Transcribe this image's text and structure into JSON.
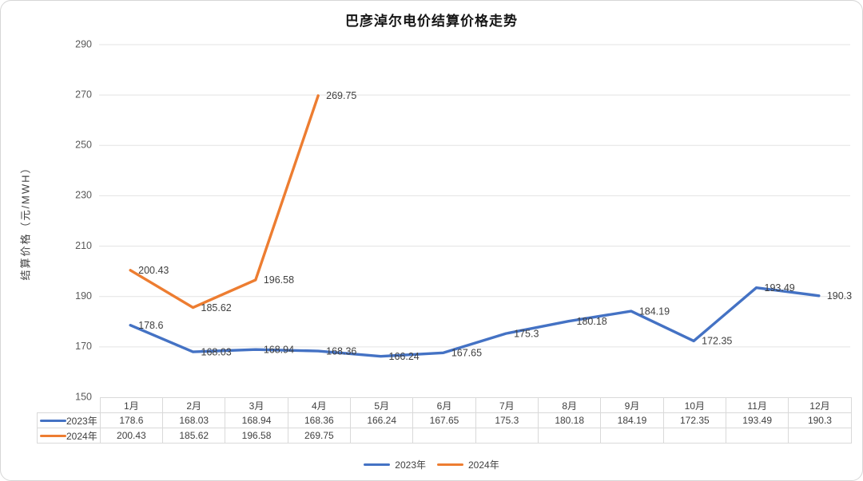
{
  "chart_data": {
    "type": "line",
    "title": "巴彦淖尔电价结算价格走势",
    "xlabel": "",
    "ylabel": "结算价格（元/MWH）",
    "categories": [
      "1月",
      "2月",
      "3月",
      "4月",
      "5月",
      "6月",
      "7月",
      "8月",
      "9月",
      "10月",
      "11月",
      "12月"
    ],
    "series": [
      {
        "name": "2023年",
        "color": "#4472C4",
        "values": [
          178.6,
          168.03,
          168.94,
          168.36,
          166.24,
          167.65,
          175.3,
          180.18,
          184.19,
          172.35,
          193.49,
          190.3
        ]
      },
      {
        "name": "2024年",
        "color": "#ED7D31",
        "values": [
          200.43,
          185.62,
          196.58,
          269.75,
          null,
          null,
          null,
          null,
          null,
          null,
          null,
          null
        ]
      }
    ],
    "ylim": [
      150,
      290
    ],
    "ytick_step": 20,
    "yticks": [
      150,
      170,
      190,
      210,
      230,
      250,
      270,
      290
    ],
    "grid": true,
    "data_labels": true,
    "data_table_shown": true,
    "legend_position": "bottom"
  },
  "colors": {
    "gridline": "#e3e3e3",
    "table_border": "#d9d9d9",
    "tick_text": "#595959",
    "data_label_text": "#3f3f3f",
    "title_text": "#151515"
  }
}
